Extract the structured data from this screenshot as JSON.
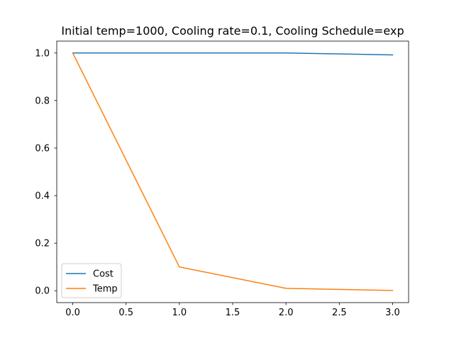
{
  "chart_data": {
    "type": "line",
    "title": "Initial temp=1000, Cooling rate=0.1, Cooling Schedule=exp",
    "xlabel": "",
    "ylabel": "",
    "x": [
      0,
      1,
      2,
      3
    ],
    "series": [
      {
        "name": "Cost",
        "color": "#1f77b4",
        "values": [
          1.0,
          1.0,
          1.0,
          0.992
        ]
      },
      {
        "name": "Temp",
        "color": "#ff7f0e",
        "values": [
          1.0,
          0.1,
          0.01,
          0.001
        ]
      }
    ],
    "xlim": [
      -0.15,
      3.15
    ],
    "ylim": [
      -0.05,
      1.05
    ],
    "xticks": [
      {
        "value": 0.0,
        "label": "0.0"
      },
      {
        "value": 0.5,
        "label": "0.5"
      },
      {
        "value": 1.0,
        "label": "1.0"
      },
      {
        "value": 1.5,
        "label": "1.5"
      },
      {
        "value": 2.0,
        "label": "2.0"
      },
      {
        "value": 2.5,
        "label": "2.5"
      },
      {
        "value": 3.0,
        "label": "3.0"
      }
    ],
    "yticks": [
      {
        "value": 0.0,
        "label": "0.0"
      },
      {
        "value": 0.2,
        "label": "0.2"
      },
      {
        "value": 0.4,
        "label": "0.4"
      },
      {
        "value": 0.6,
        "label": "0.6"
      },
      {
        "value": 0.8,
        "label": "0.8"
      },
      {
        "value": 1.0,
        "label": "1.0"
      }
    ],
    "grid": false,
    "legend": "lower-left"
  }
}
